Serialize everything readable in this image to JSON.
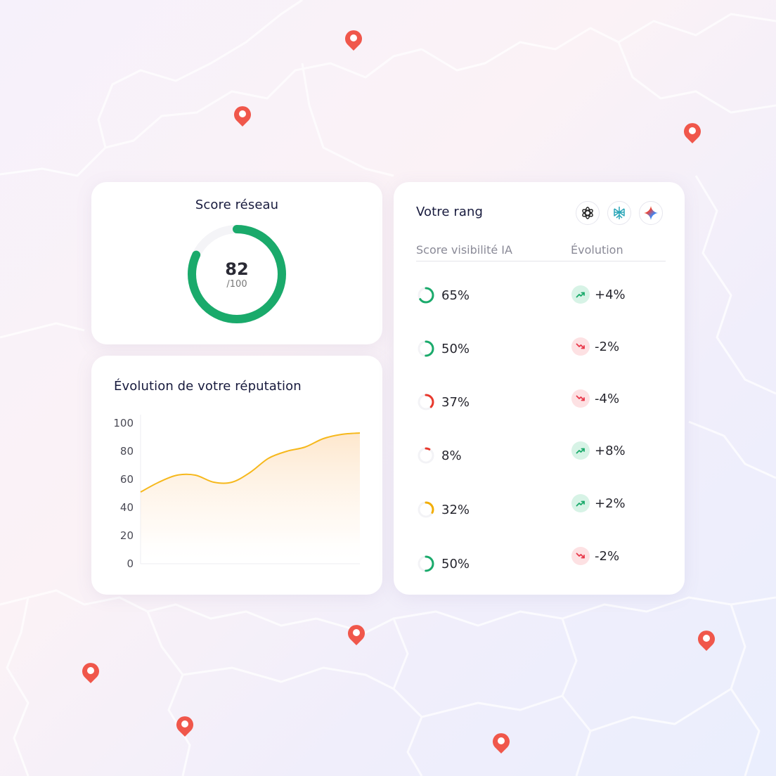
{
  "colors": {
    "pin": "#f0574b",
    "score_ring": "#1aaa6b",
    "ring_green": "#1aaa6b",
    "ring_red": "#e8382c",
    "ring_amber": "#f2ad00",
    "line": "#f6b81c",
    "trend_up": "#1aaa6b",
    "trend_down": "#e8384a"
  },
  "score_card": {
    "title": "Score réseau",
    "value": "82",
    "max_label": "/100",
    "fraction": 0.82
  },
  "evolution_card": {
    "title": "Évolution de votre réputation"
  },
  "chart_data": {
    "type": "area",
    "title": "Évolution de votre réputation",
    "xlabel": "",
    "ylabel": "",
    "ylim": [
      0,
      100
    ],
    "yticks": [
      100,
      80,
      60,
      40,
      20,
      0
    ],
    "ytick_labels": [
      "100",
      "80",
      "60",
      "40",
      "20",
      "0"
    ],
    "grid": false,
    "x": [
      0,
      1,
      2,
      3,
      4,
      5,
      6,
      7,
      8,
      9,
      10,
      11,
      12
    ],
    "values": [
      51,
      58,
      63,
      63,
      58,
      58,
      65,
      75,
      80,
      83,
      89,
      92,
      93
    ]
  },
  "rank_card": {
    "title": "Votre rang",
    "ai_icons": [
      "chatgpt-icon",
      "perplexity-icon",
      "gemini-icon"
    ],
    "columns": [
      "Score visibilité IA",
      "Évolution"
    ],
    "rows": [
      {
        "score": "65%",
        "fraction": 0.65,
        "ring": "green",
        "delta": "+4%",
        "trend": "up"
      },
      {
        "score": "50%",
        "fraction": 0.5,
        "ring": "green",
        "delta": "-2%",
        "trend": "down"
      },
      {
        "score": "37%",
        "fraction": 0.37,
        "ring": "red",
        "delta": "-4%",
        "trend": "down"
      },
      {
        "score": "8%",
        "fraction": 0.08,
        "ring": "red",
        "delta": "+8%",
        "trend": "up"
      },
      {
        "score": "32%",
        "fraction": 0.32,
        "ring": "amber",
        "delta": "+2%",
        "trend": "up"
      },
      {
        "score": "50%",
        "fraction": 0.5,
        "ring": "green",
        "delta": "-2%",
        "trend": "down"
      }
    ]
  }
}
